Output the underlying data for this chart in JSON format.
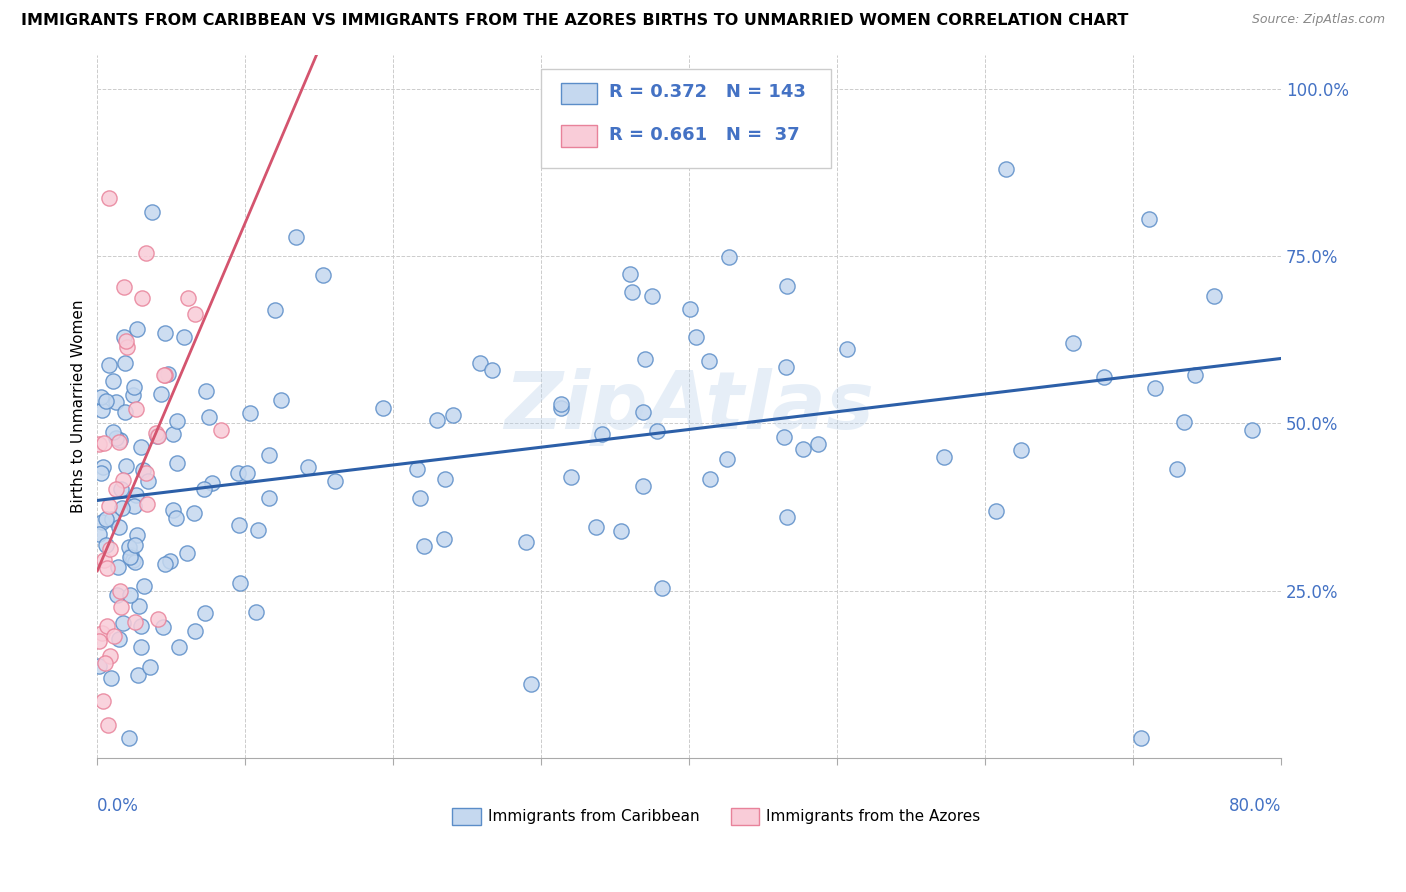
{
  "title": "IMMIGRANTS FROM CARIBBEAN VS IMMIGRANTS FROM THE AZORES BIRTHS TO UNMARRIED WOMEN CORRELATION CHART",
  "source": "Source: ZipAtlas.com",
  "ylabel": "Births to Unmarried Women",
  "xlim": [
    0.0,
    0.8
  ],
  "ylim": [
    0.0,
    1.05
  ],
  "legend_R1": "R = 0.372",
  "legend_N1": "N = 143",
  "legend_R2": "R = 0.661",
  "legend_N2": "N =  37",
  "legend_label1": "Immigrants from Caribbean",
  "legend_label2": "Immigrants from the Azores",
  "watermark": "ZipAtlas",
  "blue_fill": "#c5d8ef",
  "blue_edge": "#5b8dc8",
  "pink_fill": "#f9ccd8",
  "pink_edge": "#e8829a",
  "blue_line": "#2c5fa8",
  "pink_line": "#d4546e",
  "blue_intercept": 0.385,
  "blue_slope": 0.265,
  "pink_intercept": 0.28,
  "pink_slope": 5.2,
  "grid_color": "#cccccc",
  "axis_label_color": "#4472c4",
  "title_color": "#000000",
  "source_color": "#888888"
}
